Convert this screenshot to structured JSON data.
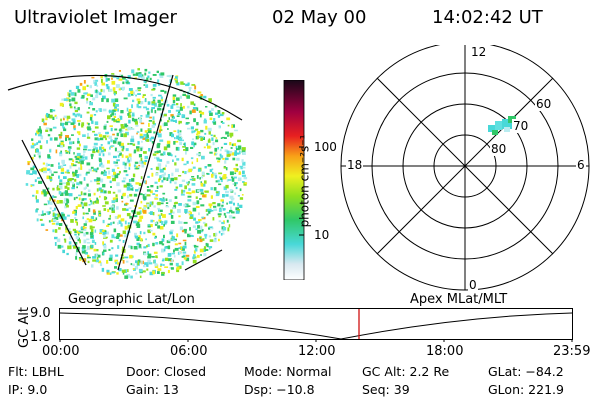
{
  "header": {
    "instrument": "Ultraviolet Imager",
    "date": "02 May 00",
    "time": "14:02:42 UT"
  },
  "colorbar": {
    "unit_label": "photon cm⁻²s⁻¹",
    "ticks": [
      "100",
      "10"
    ]
  },
  "polar": {
    "mlt_labels": {
      "top": "12",
      "left": "18",
      "right": "6",
      "bottom": "0"
    },
    "lat_labels": [
      "60",
      "70",
      "80"
    ]
  },
  "timeline": {
    "left_title": "Geographic Lat/Lon",
    "right_title": "Apex MLat/MLT",
    "axis_title": "GC Alt",
    "y_ticks": [
      "9.0",
      "1.8"
    ],
    "x_ticks": [
      "00:00",
      "06:00",
      "12:00",
      "18:00",
      "23:59"
    ],
    "marker_color": "#d01010"
  },
  "status": {
    "filter": "Flt: LBHL",
    "ip": "IP:  9.0",
    "door": "Door: Closed",
    "gain": "Gain: 13",
    "mode": "Mode: Normal",
    "dsp": "Dsp:  −10.8",
    "gc_alt": "GC Alt: 2.2 Re",
    "seq": "Seq: 39",
    "glat": "GLat: −84.2",
    "glon": "GLon: 221.9"
  }
}
